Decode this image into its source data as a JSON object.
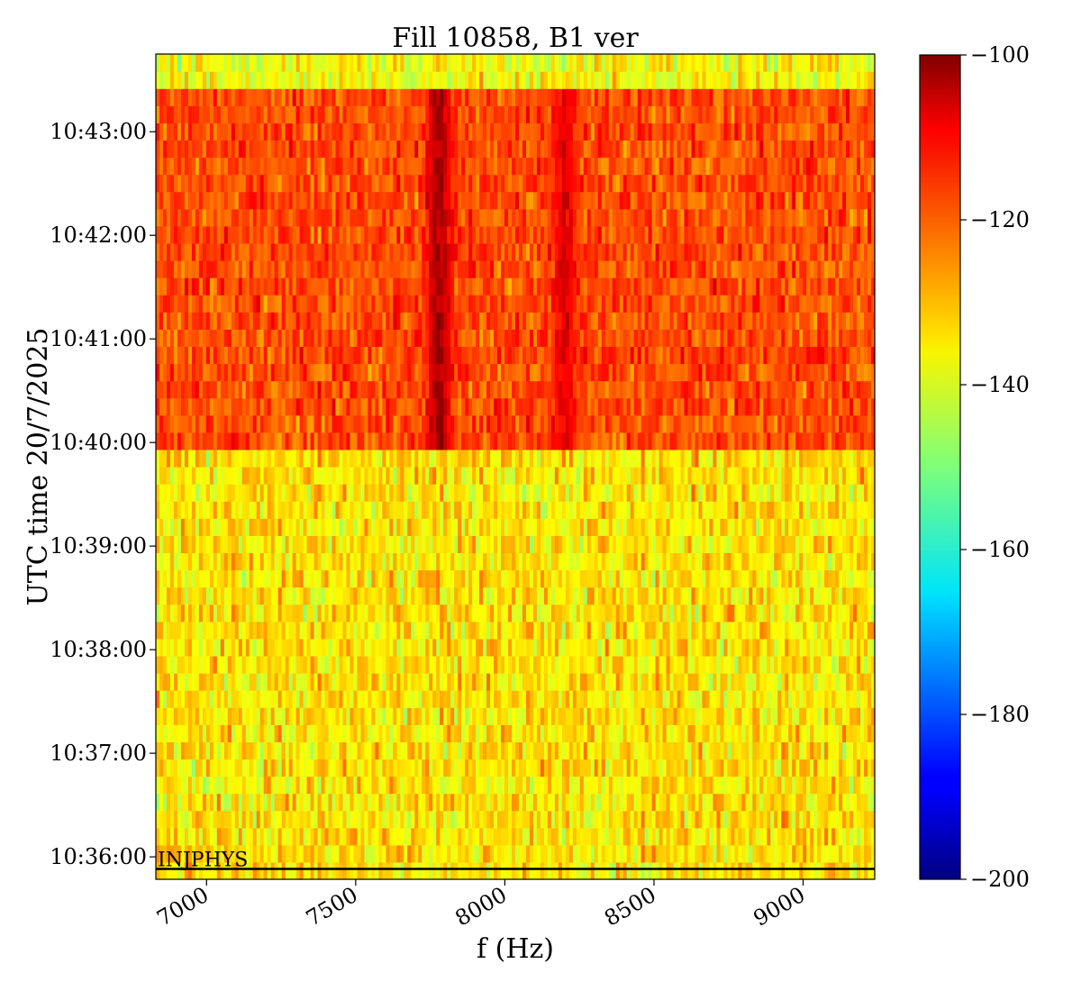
{
  "chart_data": {
    "type": "heatmap",
    "title": "Fill 10858, B1 ver",
    "xlabel": "f (Hz)",
    "ylabel": "UTC time 20/7/2025",
    "xlim": [
      6830,
      9240
    ],
    "x_ticks": [
      7000,
      7500,
      8000,
      8500,
      9000
    ],
    "x_tick_labels": [
      "7000",
      "7500",
      "8000",
      "8500",
      "9000"
    ],
    "ylim_seconds_of_day": [
      38147,
      38625
    ],
    "y_ticks": [
      {
        "label": "10:36:00",
        "value": 38160
      },
      {
        "label": "10:37:00",
        "value": 38220
      },
      {
        "label": "10:38:00",
        "value": 38280
      },
      {
        "label": "10:39:00",
        "value": 38340
      },
      {
        "label": "10:40:00",
        "value": 38400
      },
      {
        "label": "10:41:00",
        "value": 38460
      },
      {
        "label": "10:42:00",
        "value": 38520
      },
      {
        "label": "10:43:00",
        "value": 38580
      }
    ],
    "colorbar": {
      "colormap": "jet",
      "range": [
        -200,
        -100
      ],
      "ticks": [
        -100,
        -120,
        -140,
        -160,
        -180,
        -200
      ],
      "tick_labels": [
        "−100",
        "−120",
        "−140",
        "−160",
        "−180",
        "−200"
      ]
    },
    "regions": [
      {
        "time_range": [
          "10:35:53",
          "10:39:58"
        ],
        "level_dB": -135,
        "spread_dB": 6
      },
      {
        "time_range": [
          "10:39:58",
          "10:43:30"
        ],
        "level_dB": -120,
        "spread_dB": 5
      },
      {
        "time_range": [
          "10:43:30",
          "10:43:45"
        ],
        "level_dB": -138,
        "spread_dB": 6
      }
    ],
    "features": [
      {
        "type": "line",
        "frequency_Hz": 7780,
        "time_range": [
          "10:39:58",
          "10:43:30"
        ],
        "level_dB": -104
      },
      {
        "type": "line",
        "frequency_Hz": 8200,
        "time_range": [
          "10:39:58",
          "10:43:30"
        ],
        "level_dB": -110
      }
    ],
    "annotation": "INJPHYS"
  }
}
